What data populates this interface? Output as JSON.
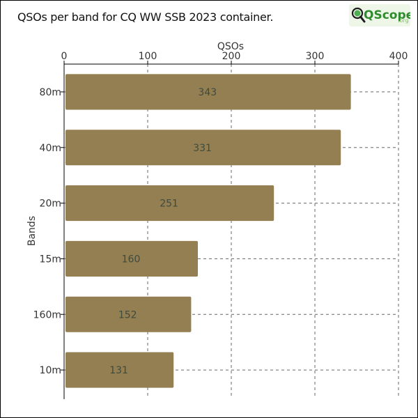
{
  "header": {
    "title": "QSOs per band for CQ WW SSB 2023 container.",
    "logo_main": "QScope",
    "logo_suffix": ".org",
    "logo_color": "#2e8b2e"
  },
  "chart_data": {
    "type": "bar",
    "orientation": "horizontal",
    "title": "QSOs per band for CQ WW SSB 2023 container.",
    "xlabel": "QSOs",
    "ylabel": "Bands",
    "xlim": [
      0,
      400
    ],
    "xticks": [
      0,
      100,
      200,
      300,
      400
    ],
    "x_axis_position": "top",
    "grid": true,
    "categories": [
      "80m",
      "40m",
      "20m",
      "15m",
      "160m",
      "10m"
    ],
    "values": [
      343,
      331,
      251,
      160,
      152,
      131
    ],
    "bar_color": "#947f52",
    "label_color": "#3e4a3e"
  }
}
